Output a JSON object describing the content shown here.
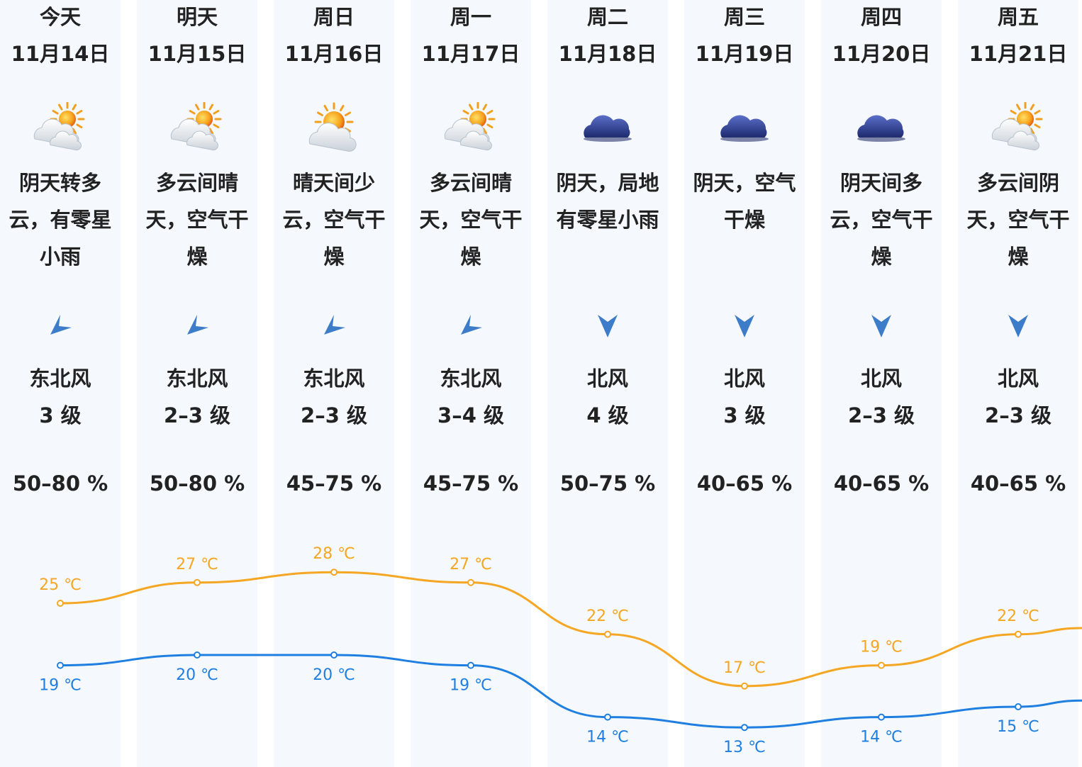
{
  "days": [
    {
      "day": "今天",
      "date": "11月14日",
      "icon": "cloudy-sun-icon",
      "desc": "阴天转多云，有零星小雨",
      "arrow": "northeast-wind-arrow-icon",
      "wind_dir": "东北风",
      "wind_level": "3 级",
      "humidity": "50–80 %",
      "high": 25,
      "low": 19,
      "high_label": "25 ℃",
      "low_label": "19 ℃"
    },
    {
      "day": "明天",
      "date": "11月15日",
      "icon": "cloudy-sun-icon",
      "desc": "多云间晴天，空气干燥",
      "arrow": "northeast-wind-arrow-icon",
      "wind_dir": "东北风",
      "wind_level": "2–3 级",
      "humidity": "50–80 %",
      "high": 27,
      "low": 20,
      "high_label": "27 ℃",
      "low_label": "20 ℃"
    },
    {
      "day": "周日",
      "date": "11月16日",
      "icon": "sunny-cloud-icon",
      "desc": "晴天间少云，空气干燥",
      "arrow": "northeast-wind-arrow-icon",
      "wind_dir": "东北风",
      "wind_level": "2–3 级",
      "humidity": "45–75 %",
      "high": 28,
      "low": 20,
      "high_label": "28 ℃",
      "low_label": "20 ℃"
    },
    {
      "day": "周一",
      "date": "11月17日",
      "icon": "cloudy-sun-icon",
      "desc": "多云间晴天，空气干燥",
      "arrow": "northeast-wind-arrow-icon",
      "wind_dir": "东北风",
      "wind_level": "3–4 级",
      "humidity": "45–75 %",
      "high": 27,
      "low": 19,
      "high_label": "27 ℃",
      "low_label": "19 ℃"
    },
    {
      "day": "周二",
      "date": "11月18日",
      "icon": "overcast-cloud-icon",
      "desc": "阴天，局地有零星小雨",
      "arrow": "north-wind-arrow-icon",
      "wind_dir": "北风",
      "wind_level": "4 级",
      "humidity": "50–75 %",
      "high": 22,
      "low": 14,
      "high_label": "22 ℃",
      "low_label": "14 ℃"
    },
    {
      "day": "周三",
      "date": "11月19日",
      "icon": "overcast-cloud-icon",
      "desc": "阴天，空气干燥",
      "arrow": "north-wind-arrow-icon",
      "wind_dir": "北风",
      "wind_level": "3 级",
      "humidity": "40–65 %",
      "high": 17,
      "low": 13,
      "high_label": "17 ℃",
      "low_label": "13 ℃"
    },
    {
      "day": "周四",
      "date": "11月20日",
      "icon": "overcast-cloud-icon",
      "desc": "阴天间多云，空气干燥",
      "arrow": "north-wind-arrow-icon",
      "wind_dir": "北风",
      "wind_level": "2–3 级",
      "humidity": "40–65 %",
      "high": 19,
      "low": 14,
      "high_label": "19 ℃",
      "low_label": "14 ℃"
    },
    {
      "day": "周五",
      "date": "11月21日",
      "icon": "cloudy-sun-icon",
      "desc": "多云间阴天，空气干燥",
      "arrow": "north-wind-arrow-icon",
      "wind_dir": "北风",
      "wind_level": "2–3 级",
      "humidity": "40–65 %",
      "high": 22,
      "low": 15,
      "high_label": "22 ℃",
      "low_label": "15 ℃"
    }
  ],
  "colors": {
    "high": "#f5a623",
    "low": "#1f7fe0",
    "column": "#f5f8fd"
  }
}
